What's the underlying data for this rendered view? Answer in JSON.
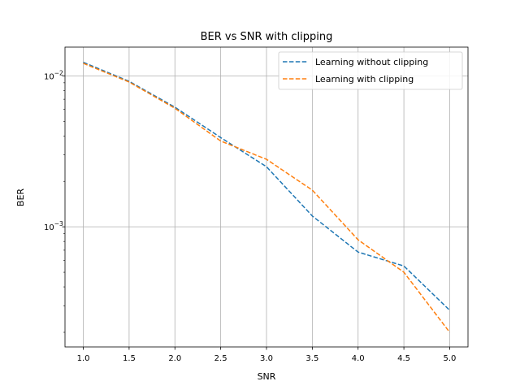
{
  "chart_data": {
    "type": "line",
    "title": "BER vs SNR with clipping",
    "xlabel": "SNR",
    "ylabel": "BER",
    "xlim": [
      0.8,
      5.2
    ],
    "ylim": [
      0.00016,
      0.0155
    ],
    "yscale": "log",
    "grid": true,
    "legend_position": "top-right",
    "x": [
      1.0,
      1.5,
      2.0,
      2.5,
      3.0,
      3.5,
      4.0,
      4.5,
      5.0
    ],
    "xticks": [
      1.0,
      1.5,
      2.0,
      2.5,
      3.0,
      3.5,
      4.0,
      4.5,
      5.0
    ],
    "xtick_labels": [
      "1.0",
      "1.5",
      "2.0",
      "2.5",
      "3.0",
      "3.5",
      "4.0",
      "4.5",
      "5.0"
    ],
    "ytick_labels": [
      {
        "base": "10",
        "exp": "−2",
        "value": 0.01
      },
      {
        "base": "10",
        "exp": "−3",
        "value": 0.001
      }
    ],
    "series": [
      {
        "name": "Learning without clipping",
        "color": "#1f77b4",
        "line_style": "dashed",
        "values": [
          0.0123,
          0.0092,
          0.0062,
          0.0039,
          0.0025,
          0.00118,
          0.00068,
          0.00055,
          0.00028
        ]
      },
      {
        "name": "Learning with clipping",
        "color": "#ff7f0e",
        "line_style": "dashed",
        "values": [
          0.0121,
          0.0091,
          0.0061,
          0.0037,
          0.0028,
          0.00175,
          0.00082,
          0.0005,
          0.0002
        ]
      }
    ]
  }
}
